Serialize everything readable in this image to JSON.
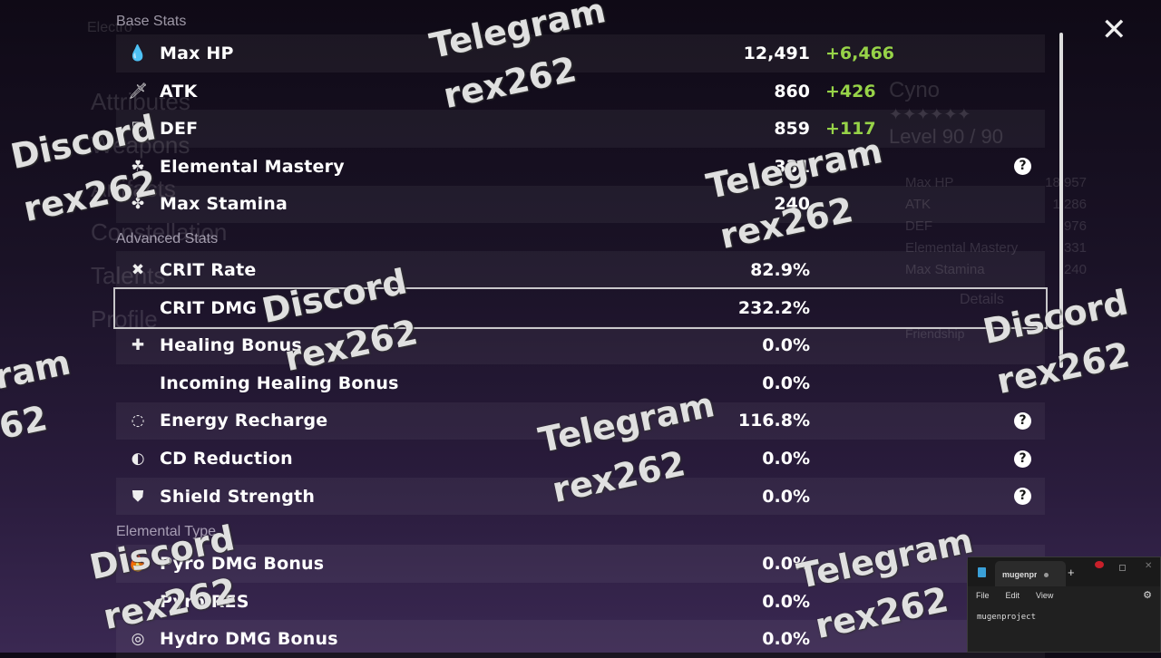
{
  "background": {
    "character_name": "Cyno",
    "level": "Level 90 / 90",
    "stars": "✦✦✦✦✦✦",
    "stats": [
      {
        "label": "Max HP",
        "value": "18,957"
      },
      {
        "label": "ATK",
        "value": "1,286"
      },
      {
        "label": "DEF",
        "value": "976"
      },
      {
        "label": "Elemental Mastery",
        "value": "331"
      },
      {
        "label": "Max Stamina",
        "value": "240"
      }
    ],
    "details_label": "Details",
    "friendship_label": "Friendship",
    "menu": [
      "Attributes",
      "Weapons",
      "Artifacts",
      "Constellation",
      "Talents",
      "Profile"
    ],
    "element_label": "Electro"
  },
  "sections": {
    "base": "Base Stats",
    "advanced": "Advanced Stats",
    "elemental": "Elemental Type"
  },
  "base_stats": [
    {
      "icon": "hp-drop-icon",
      "glyph": "💧",
      "label": "Max HP",
      "value": "12,491",
      "bonus": "+6,466"
    },
    {
      "icon": "sword-icon",
      "glyph": "🗡",
      "label": "ATK",
      "value": "860",
      "bonus": "+426"
    },
    {
      "icon": "shield-icon",
      "glyph": "⛨",
      "label": "DEF",
      "value": "859",
      "bonus": "+117"
    },
    {
      "icon": "mastery-icon",
      "glyph": "☘",
      "label": "Elemental Mastery",
      "value": "331",
      "help": true
    },
    {
      "icon": "stamina-icon",
      "glyph": "✤",
      "label": "Max Stamina",
      "value": "240"
    }
  ],
  "advanced_stats": [
    {
      "icon": "crit-rate-icon",
      "glyph": "✖",
      "label": "CRIT Rate",
      "value": "82.9%"
    },
    {
      "icon": "",
      "glyph": "",
      "label": "CRIT DMG",
      "value": "232.2%",
      "selected": true
    },
    {
      "icon": "healing-cross-icon",
      "glyph": "✚",
      "label": "Healing Bonus",
      "value": "0.0%"
    },
    {
      "icon": "",
      "glyph": "",
      "label": "Incoming Healing Bonus",
      "value": "0.0%"
    },
    {
      "icon": "energy-recharge-icon",
      "glyph": "◌",
      "label": "Energy Recharge",
      "value": "116.8%",
      "help": true
    },
    {
      "icon": "cd-reduction-icon",
      "glyph": "◐",
      "label": "CD Reduction",
      "value": "0.0%",
      "help": true
    },
    {
      "icon": "shield-strength-icon",
      "glyph": "⛊",
      "label": "Shield Strength",
      "value": "0.0%",
      "help": true
    }
  ],
  "elemental_stats": [
    {
      "icon": "pyro-icon",
      "glyph": "🔥",
      "label": "Pyro DMG Bonus",
      "value": "0.0%"
    },
    {
      "icon": "",
      "glyph": "",
      "label": "Pyro RES",
      "value": "0.0%"
    },
    {
      "icon": "hydro-icon",
      "glyph": "◎",
      "label": "Hydro DMG Bonus",
      "value": "0.0%"
    }
  ],
  "help_glyph": "?",
  "close_glyph": "✕",
  "watermarks": [
    "Telegram",
    "rex262",
    "Discord",
    "rex262",
    "Telegram",
    "rex262",
    "Discord",
    "rex262",
    "Discord",
    "rex262",
    "Telegram",
    "rex262",
    "Discord",
    "rex262",
    "Telegram",
    "rex262",
    "ram",
    "62"
  ],
  "notepad": {
    "tab": "mugenproject",
    "menu": [
      "File",
      "Edit",
      "View"
    ],
    "content": "mugenproject",
    "new_tab": "+"
  },
  "colors": {
    "bonus": "#97d348",
    "background": "#1a1226"
  }
}
